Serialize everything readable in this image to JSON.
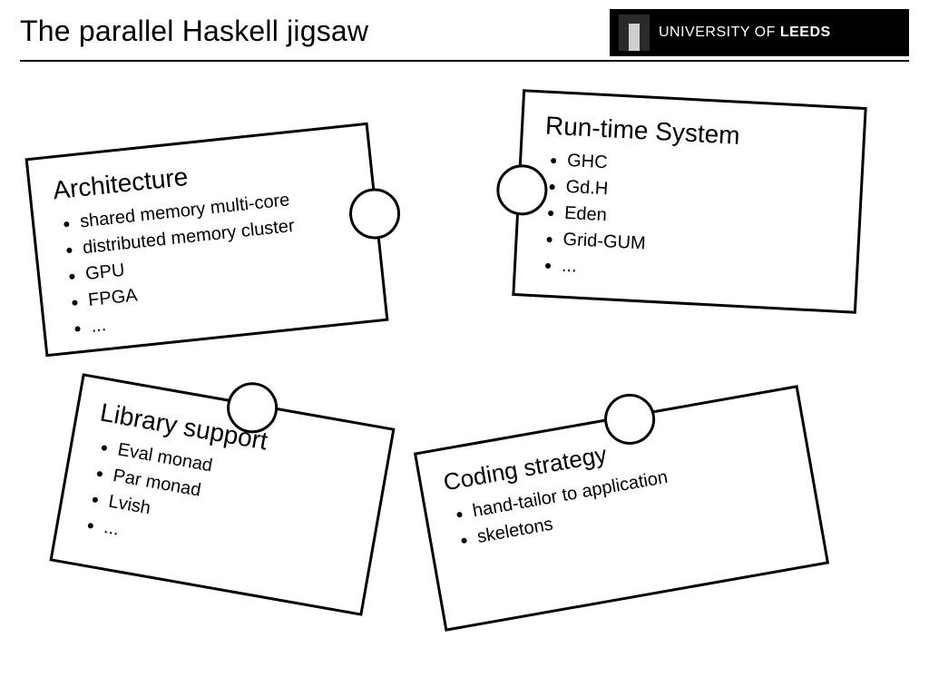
{
  "page": {
    "title": "The parallel Haskell jigsaw",
    "logo_text_prefix": "UNIVERSITY OF ",
    "logo_text_bold": "LEEDS",
    "background_color": "#ffffff",
    "border_color": "#000000",
    "title_fontsize": 32,
    "piece_title_fontsize": 28,
    "item_fontsize": 20
  },
  "pieces": {
    "architecture": {
      "title": "Architecture",
      "rotation_deg": -6,
      "items": [
        "shared memory multi-core",
        "distributed memory cluster",
        "GPU",
        "FPGA",
        "..."
      ]
    },
    "runtime": {
      "title": "Run-time System",
      "rotation_deg": 3,
      "items": [
        "GHC",
        "Gd.H",
        "Eden",
        "Grid-GUM",
        "..."
      ]
    },
    "library": {
      "title": "Library support",
      "rotation_deg": 10,
      "items": [
        "Eval monad",
        "Par monad",
        "Lvish",
        "..."
      ]
    },
    "coding": {
      "title": "Coding strategy",
      "rotation_deg": -10,
      "items": [
        "hand-tailor to application",
        "skeletons"
      ]
    }
  }
}
